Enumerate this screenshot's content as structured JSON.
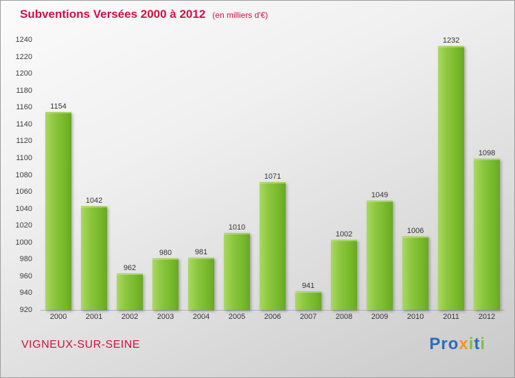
{
  "header": {
    "title": "Subventions Versées 2000 à 2012",
    "subtitle": "(en milliers d'€)"
  },
  "chart_data": {
    "type": "bar",
    "title": "Subventions Versées 2000 à 2012",
    "subtitle": "(en milliers d'€)",
    "categories": [
      "2000",
      "2001",
      "2002",
      "2003",
      "2004",
      "2005",
      "2006",
      "2007",
      "2008",
      "2009",
      "2010",
      "2011",
      "2012"
    ],
    "values": [
      1154,
      1042,
      962,
      980,
      981,
      1010,
      1071,
      941,
      1002,
      1049,
      1006,
      1232,
      1098
    ],
    "xlabel": "",
    "ylabel": "",
    "ylim": [
      920,
      1240
    ],
    "ytick_step": 20,
    "grid": false,
    "legend": "none",
    "bar_color": "#8cc63f",
    "value_labels": true
  },
  "footer": {
    "location": "VIGNEUX-SUR-SEINE",
    "logo": {
      "text": "Proxiti",
      "letters": [
        {
          "ch": "P",
          "color": "#2b6cb8"
        },
        {
          "ch": "r",
          "color": "#2b6cb8"
        },
        {
          "ch": "o",
          "color": "#2b6cb8"
        },
        {
          "ch": "x",
          "color": "#f7941d"
        },
        {
          "ch": "i",
          "color": "#7ac143"
        },
        {
          "ch": "t",
          "color": "#2b6cb8"
        },
        {
          "ch": "i",
          "color": "#7ac143"
        }
      ]
    }
  },
  "colors": {
    "title_text": "#cc1144",
    "axis_text": "#3c3c3c"
  }
}
